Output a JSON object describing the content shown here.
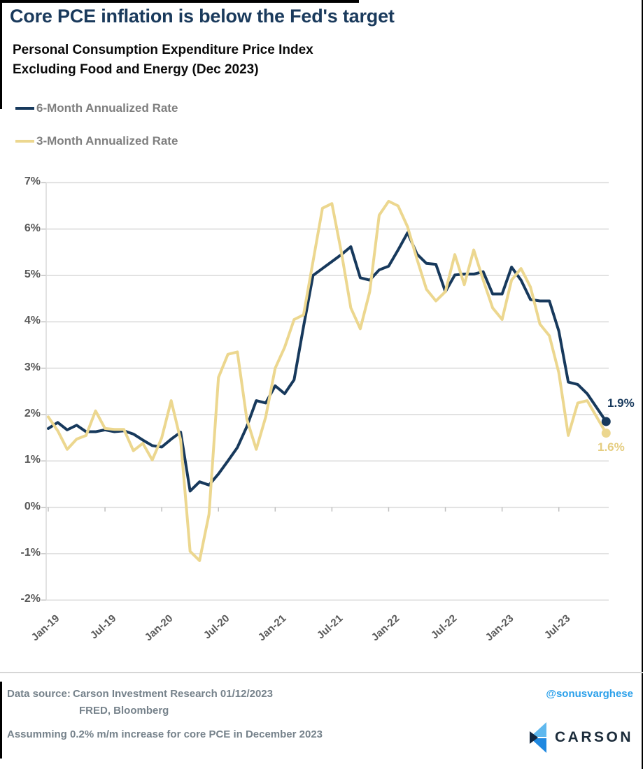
{
  "title": "Core PCE inflation is below the Fed's target",
  "subtitle_line1": "Personal Consumption Expenditure Price Index",
  "subtitle_line2": "Excluding Food and Energy (Dec 2023)",
  "chart_data": {
    "type": "line",
    "frequency": "monthly",
    "x_start": "Jan-2019",
    "x_end": "Dec-2023",
    "grid": true,
    "legend_position": "top-left",
    "ylim": [
      -2,
      7
    ],
    "y_ticks": [
      {
        "label": "7%",
        "value": 7
      },
      {
        "label": "6%",
        "value": 6
      },
      {
        "label": "5%",
        "value": 5
      },
      {
        "label": "4%",
        "value": 4
      },
      {
        "label": "3%",
        "value": 3
      },
      {
        "label": "2%",
        "value": 2
      },
      {
        "label": "1%",
        "value": 1
      },
      {
        "label": "0%",
        "value": 0
      },
      {
        "label": "-1%",
        "value": -1
      },
      {
        "label": "-2%",
        "value": -2
      }
    ],
    "x_ticks": [
      {
        "label": "Jan-19",
        "month": 0
      },
      {
        "label": "Jul-19",
        "month": 6
      },
      {
        "label": "Jan-20",
        "month": 12
      },
      {
        "label": "Jul-20",
        "month": 18
      },
      {
        "label": "Jan-21",
        "month": 24
      },
      {
        "label": "Jul-21",
        "month": 30
      },
      {
        "label": "Jan-22",
        "month": 36
      },
      {
        "label": "Jul-22",
        "month": 42
      },
      {
        "label": "Jan-23",
        "month": 48
      },
      {
        "label": "Jul-23",
        "month": 54
      }
    ],
    "series": [
      {
        "name": "6-Month Annualized Rate",
        "color": "#17395c",
        "end_label": "1.9%",
        "end_label_color": "#17395c",
        "values": [
          1.7,
          1.83,
          1.67,
          1.77,
          1.63,
          1.63,
          1.67,
          1.63,
          1.65,
          1.58,
          1.45,
          1.33,
          1.3,
          1.47,
          1.62,
          0.35,
          0.55,
          0.48,
          0.72,
          1.0,
          1.29,
          1.74,
          2.3,
          2.25,
          2.62,
          2.45,
          2.75,
          3.9,
          5.0,
          5.15,
          5.3,
          5.45,
          5.62,
          4.95,
          4.9,
          5.12,
          5.2,
          5.55,
          5.92,
          5.46,
          5.26,
          5.24,
          4.65,
          5.01,
          5.03,
          5.03,
          5.08,
          4.6,
          4.6,
          5.18,
          4.9,
          4.48,
          4.45,
          4.45,
          3.8,
          2.7,
          2.65,
          2.45,
          2.15,
          1.85
        ]
      },
      {
        "name": "3-Month Annualized Rate",
        "color": "#ecd78f",
        "end_label": "1.6%",
        "end_label_color": "#e5cd80",
        "values": [
          1.95,
          1.65,
          1.25,
          1.47,
          1.55,
          2.08,
          1.7,
          1.68,
          1.68,
          1.22,
          1.38,
          1.02,
          1.5,
          2.3,
          1.45,
          -0.95,
          -1.15,
          -0.15,
          2.8,
          3.3,
          3.35,
          1.9,
          1.25,
          1.95,
          3.0,
          3.45,
          4.05,
          4.15,
          5.3,
          6.45,
          6.55,
          5.5,
          4.3,
          3.85,
          4.65,
          6.3,
          6.6,
          6.5,
          6.05,
          5.35,
          4.7,
          4.45,
          4.65,
          5.45,
          4.8,
          5.55,
          4.9,
          4.3,
          4.05,
          4.9,
          5.15,
          4.75,
          3.95,
          3.7,
          2.9,
          1.55,
          2.25,
          2.3,
          1.95,
          1.6
        ]
      }
    ],
    "grid_color": "#d9d9d9",
    "tick_color": "#bfbfbf"
  },
  "footer": {
    "data_source_label": "Data source:",
    "data_source_line1": "Carson Investment Research  01/12/2023",
    "data_source_line2": "FRED, Bloomberg",
    "handle": "@sonusvarghese",
    "assumption": "Assumming 0.2% m/m increase for core PCE in December 2023",
    "logo_text": "CARSON",
    "logo_colors": {
      "light": "#5fb8ee",
      "blue": "#1f88e0",
      "navy": "#12263f"
    }
  }
}
